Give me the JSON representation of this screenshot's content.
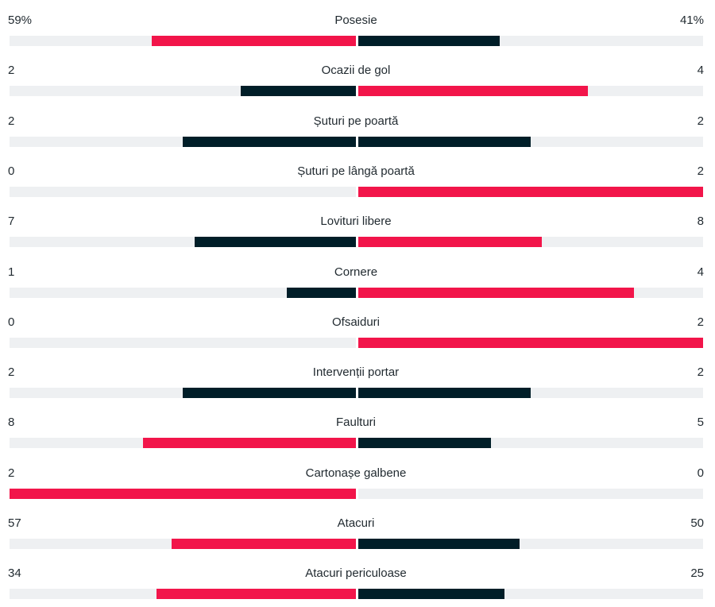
{
  "colors": {
    "leader": "#f2154a",
    "trailer": "#001e28",
    "track": "#eef0f2",
    "text": "#222b31"
  },
  "stats": [
    {
      "label": "Posesie",
      "home": "59%",
      "away": "41%",
      "home_value": 59,
      "away_value": 41,
      "max": 100
    },
    {
      "label": "Ocazii de gol",
      "home": "2",
      "away": "4",
      "home_value": 2,
      "away_value": 4,
      "max": 6
    },
    {
      "label": "Șuturi pe poartă",
      "home": "2",
      "away": "2",
      "home_value": 2,
      "away_value": 2,
      "max": 4
    },
    {
      "label": "Șuturi pe lângă poartă",
      "home": "0",
      "away": "2",
      "home_value": 0,
      "away_value": 2,
      "max": 2
    },
    {
      "label": "Lovituri libere",
      "home": "7",
      "away": "8",
      "home_value": 7,
      "away_value": 8,
      "max": 15
    },
    {
      "label": "Cornere",
      "home": "1",
      "away": "4",
      "home_value": 1,
      "away_value": 4,
      "max": 5
    },
    {
      "label": "Ofsaiduri",
      "home": "0",
      "away": "2",
      "home_value": 0,
      "away_value": 2,
      "max": 2
    },
    {
      "label": "Intervenții portar",
      "home": "2",
      "away": "2",
      "home_value": 2,
      "away_value": 2,
      "max": 4
    },
    {
      "label": "Faulturi",
      "home": "8",
      "away": "5",
      "home_value": 8,
      "away_value": 5,
      "max": 13
    },
    {
      "label": "Cartonașe galbene",
      "home": "2",
      "away": "0",
      "home_value": 2,
      "away_value": 0,
      "max": 2
    },
    {
      "label": "Atacuri",
      "home": "57",
      "away": "50",
      "home_value": 57,
      "away_value": 50,
      "max": 107
    },
    {
      "label": "Atacuri periculoase",
      "home": "34",
      "away": "25",
      "home_value": 34,
      "away_value": 25,
      "max": 59
    }
  ]
}
